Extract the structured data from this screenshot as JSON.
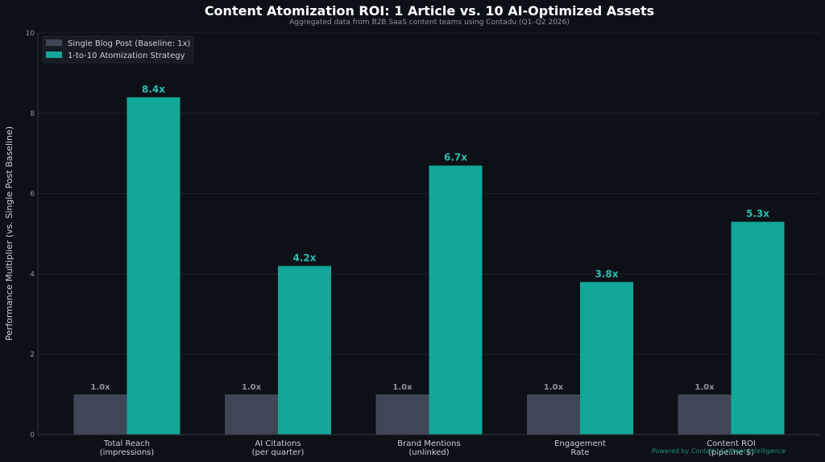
{
  "chart_data": {
    "type": "bar",
    "title": "Content Atomization ROI: 1 Article vs. 10 AI-Optimized Assets",
    "subtitle": "Aggregated data from B2B SaaS content teams using Contadu (Q1–Q2 2026)",
    "ylabel": "Performance Multiplier (vs. Single Post Baseline)",
    "xlabel": "",
    "ylim": [
      0,
      10
    ],
    "yticks": [
      "0",
      "2",
      "4",
      "6",
      "8",
      "10"
    ],
    "grid": true,
    "legend_position": "top-left",
    "categories": [
      [
        "Total Reach",
        "(impressions)"
      ],
      [
        "AI Citations",
        "(per quarter)"
      ],
      [
        "Brand Mentions",
        "(unlinked)"
      ],
      [
        "Engagement",
        "Rate"
      ],
      [
        "Content ROI",
        "(pipeline $)"
      ]
    ],
    "series": [
      {
        "name": "Single Blog Post (Baseline: 1x)",
        "values": [
          1.0,
          1.0,
          1.0,
          1.0,
          1.0
        ],
        "labels": [
          "1.0x",
          "1.0x",
          "1.0x",
          "1.0x",
          "1.0x"
        ],
        "color": "#3f4756"
      },
      {
        "name": "1-to-10 Atomization Strategy",
        "values": [
          8.4,
          4.2,
          6.7,
          3.8,
          5.3
        ],
        "labels": [
          "8.4x",
          "4.2x",
          "6.7x",
          "3.8x",
          "5.3x"
        ],
        "color": "#12a797"
      }
    ],
    "footer": "Powered by Contadu Content Intelligence"
  },
  "colors": {
    "background": "#0d1017",
    "grid": "#1c222c",
    "axis": "#30363d",
    "label_accent": "#2bbfae",
    "footer": "#1f8f84"
  }
}
